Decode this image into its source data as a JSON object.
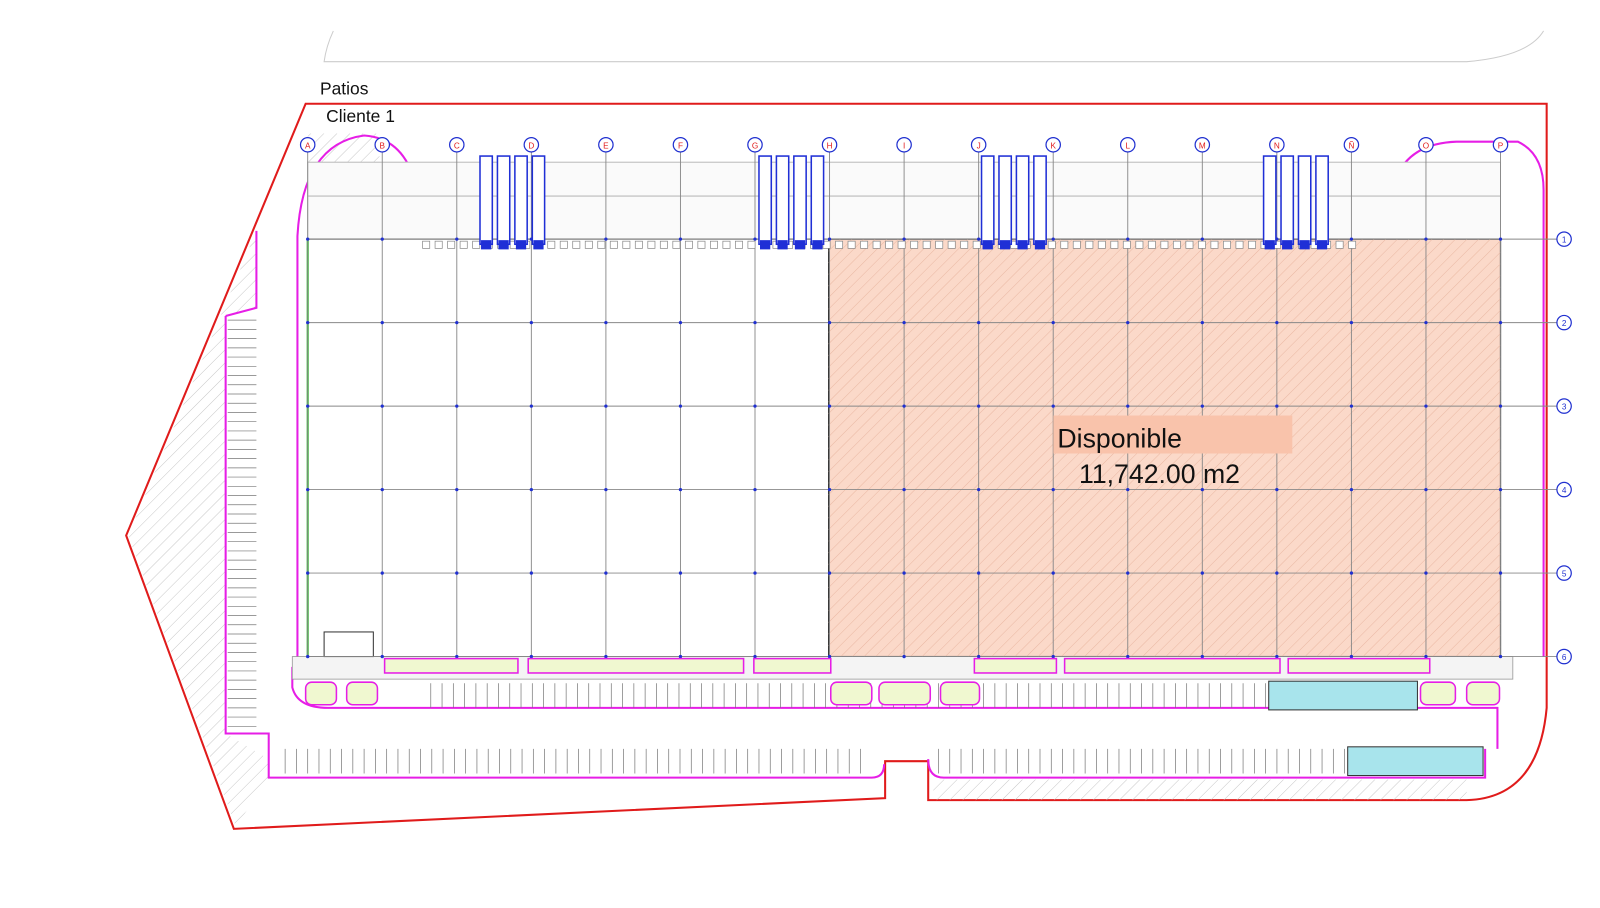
{
  "labels": {
    "patios": "Patios",
    "client": "Cliente 1"
  },
  "area": {
    "status": "Disponible",
    "size": "11,742.00 m2"
  },
  "column_axes": [
    "A",
    "B",
    "C",
    "D",
    "E",
    "F",
    "G",
    "H",
    "I",
    "J",
    "K",
    "L",
    "M",
    "N",
    "Ñ",
    "O",
    "P"
  ],
  "row_axes": [
    "1",
    "2",
    "3",
    "4",
    "5",
    "6"
  ]
}
